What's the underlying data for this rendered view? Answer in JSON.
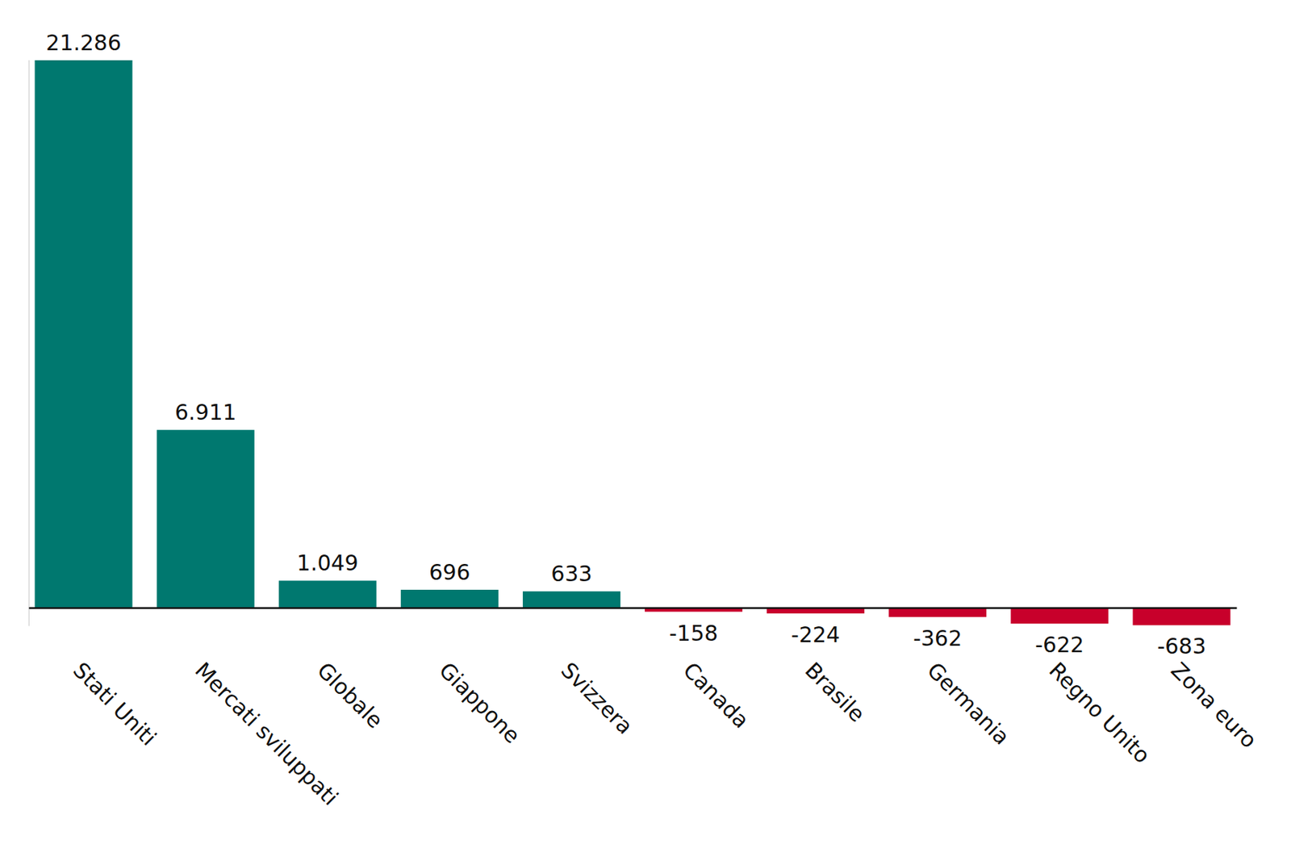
{
  "chart_data": {
    "type": "bar",
    "categories": [
      "Stati Uniti",
      "Mercati sviluppati",
      "Globale",
      "Giappone",
      "Svizzera",
      "Canada",
      "Brasile",
      "Germania",
      "Regno Unito",
      "Zona euro"
    ],
    "values": [
      21286,
      6911,
      1049,
      696,
      633,
      -158,
      -224,
      -362,
      -622,
      -683
    ],
    "value_labels": [
      "21.286",
      "6.911",
      "1.049",
      "696",
      "633",
      "-158",
      "-224",
      "-362",
      "-622",
      "-683"
    ],
    "colors": [
      "#00786f",
      "#00786f",
      "#00786f",
      "#00786f",
      "#00786f",
      "#c8002b",
      "#c8002b",
      "#c8002b",
      "#c8002b",
      "#c8002b"
    ],
    "ylim": [
      -700,
      21300
    ],
    "data_labels": true,
    "tick_labels": "x"
  }
}
